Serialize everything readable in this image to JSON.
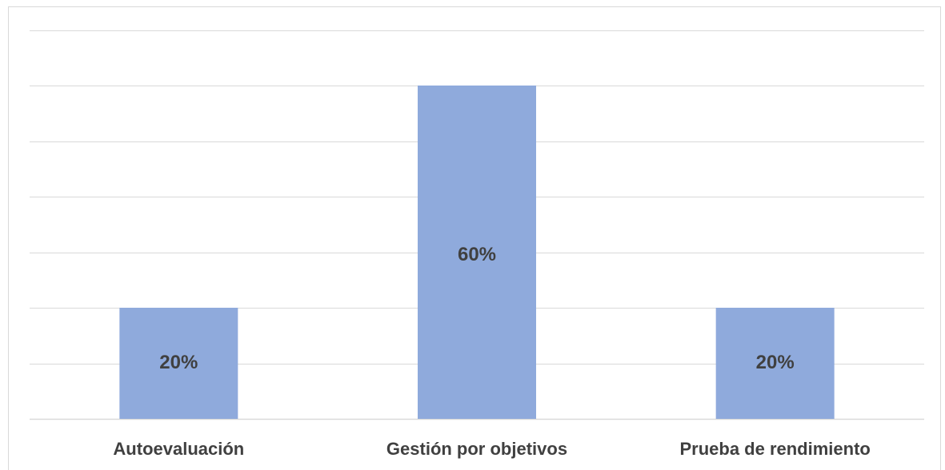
{
  "chart_data": {
    "type": "bar",
    "categories": [
      "Autoevaluación",
      "Gestión por objetivos",
      "Prueba de rendimiento"
    ],
    "values": [
      20,
      60,
      20
    ],
    "data_labels": [
      "20%",
      "60%",
      "20%"
    ],
    "unit": "%",
    "ylim": [
      0,
      70
    ],
    "grid": true,
    "gridline_step": 10,
    "legend": "none",
    "bar_color": "#8faadc",
    "gridline_color": "#d9d9d9",
    "label_color": "#404040"
  }
}
